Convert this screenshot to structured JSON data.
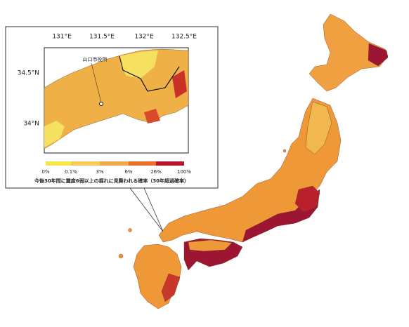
{
  "inset": {
    "lon_labels": [
      "131°E",
      "131.5°E",
      "132°E",
      "132.5°E"
    ],
    "lat_labels": [
      "34.5°N",
      "34°N"
    ],
    "marker_label": "山口市役所",
    "legend": {
      "labels": [
        "0%",
        "0.1%",
        "3%",
        "6%",
        "26%",
        "100%"
      ],
      "colors": [
        "#f5e94a",
        "#f7c85a",
        "#f0a84a",
        "#e8702e",
        "#b8162c"
      ]
    },
    "caption": "今後30年間に震度6弱以上の揺れに見舞われる確率（30年超過確率）"
  }
}
